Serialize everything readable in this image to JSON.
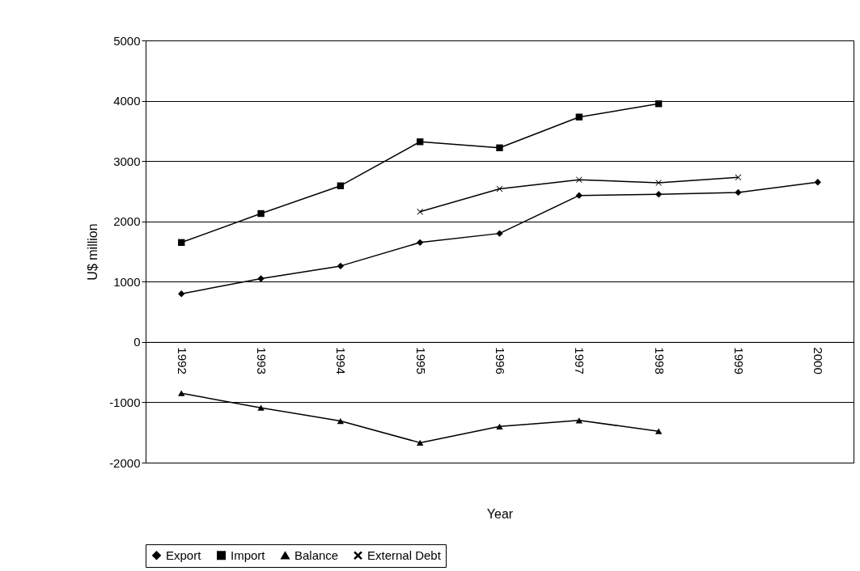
{
  "chart_data": {
    "type": "line",
    "xlabel": "Year",
    "ylabel": "U$ million",
    "categories": [
      "1992",
      "1993",
      "1994",
      "1995",
      "1996",
      "1997",
      "1998",
      "1999",
      "2000"
    ],
    "series": [
      {
        "name": "Export",
        "color": "#000000",
        "marker": "diamond",
        "values": [
          800,
          1050,
          1260,
          1650,
          1800,
          2430,
          2450,
          2480,
          2650
        ]
      },
      {
        "name": "Import",
        "color": "#000000",
        "marker": "square",
        "values": [
          1650,
          2130,
          2590,
          3320,
          3220,
          3730,
          3950,
          null,
          null
        ]
      },
      {
        "name": "Balance",
        "color": "#000000",
        "marker": "triangle",
        "values": [
          -850,
          -1090,
          -1310,
          -1670,
          -1400,
          -1300,
          -1480,
          null,
          null
        ]
      },
      {
        "name": "External Debt",
        "color": "#000000",
        "marker": "cross",
        "values": [
          null,
          null,
          null,
          2160,
          2540,
          2690,
          2640,
          2730,
          null
        ]
      }
    ],
    "ylim": [
      -2000,
      5000
    ],
    "yticks": [
      -2000,
      -1000,
      0,
      1000,
      2000,
      3000,
      4000,
      5000
    ],
    "grid": "y",
    "legend": "bottom",
    "line_style": "solid"
  }
}
